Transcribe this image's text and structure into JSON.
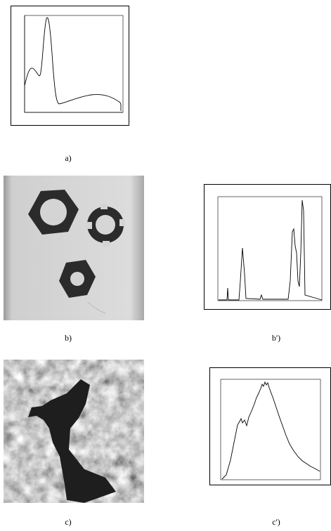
{
  "panels": [
    {
      "label": "a)"
    },
    {
      "label": "b)"
    },
    {
      "label": "b')"
    },
    {
      "label": "c)"
    },
    {
      "label": "c')"
    }
  ]
}
